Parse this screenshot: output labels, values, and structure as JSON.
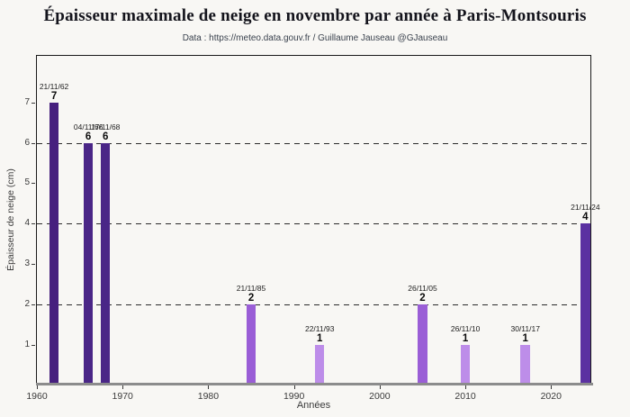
{
  "title": "Épaisseur maximale de neige en novembre par année à Paris-Montsouris",
  "subtitle": "Data : https://meteo.data.gouv.fr / Guillaume Jauseau @GJauseau",
  "chart_data": {
    "type": "bar",
    "title": "Épaisseur maximale de neige en novembre par année à Paris-Montsouris",
    "subtitle": "Data : https://meteo.data.gouv.fr / Guillaume Jauseau @GJauseau",
    "xlabel": "Années",
    "ylabel": "Épaisseur de neige (cm)",
    "xlim": [
      1960,
      2024.8
    ],
    "ylim": [
      0,
      8.15
    ],
    "x_ticks": [
      1960,
      1970,
      1980,
      1990,
      2000,
      2010,
      2020
    ],
    "y_ticks": [
      1,
      2,
      3,
      4,
      5,
      6,
      7
    ],
    "gridlines_y": [
      2,
      4,
      6
    ],
    "grid_style": "dashed",
    "legend": "none",
    "bar_width_years": 1.1,
    "points": [
      {
        "year": 1962,
        "value": 7,
        "date": "21/11/62",
        "color": "#461f7e"
      },
      {
        "year": 1966,
        "value": 6,
        "date": "04/11/66",
        "color": "#4a2687"
      },
      {
        "year": 1968,
        "value": 6,
        "date": "17/11/68",
        "color": "#4a2687"
      },
      {
        "year": 1985,
        "value": 2,
        "date": "21/11/85",
        "color": "#9a5ed6"
      },
      {
        "year": 1993,
        "value": 1,
        "date": "22/11/93",
        "color": "#bd8de9"
      },
      {
        "year": 2005,
        "value": 2,
        "date": "26/11/05",
        "color": "#9a5ed6"
      },
      {
        "year": 2010,
        "value": 1,
        "date": "26/11/10",
        "color": "#bd8de9"
      },
      {
        "year": 2017,
        "value": 1,
        "date": "30/11/17",
        "color": "#bd8de9"
      },
      {
        "year": 2024,
        "value": 4,
        "date": "21/11/24",
        "color": "#5b31a1"
      }
    ],
    "colors": {
      "background": "#f8f7f4",
      "spine": "#1a1a1a",
      "bottom_spine": "#8c8c8c",
      "grid": "#2b2b2b",
      "tick_text": "#3a3a3a",
      "title_text": "#14141c",
      "subtitle_text": "#39414d"
    }
  }
}
